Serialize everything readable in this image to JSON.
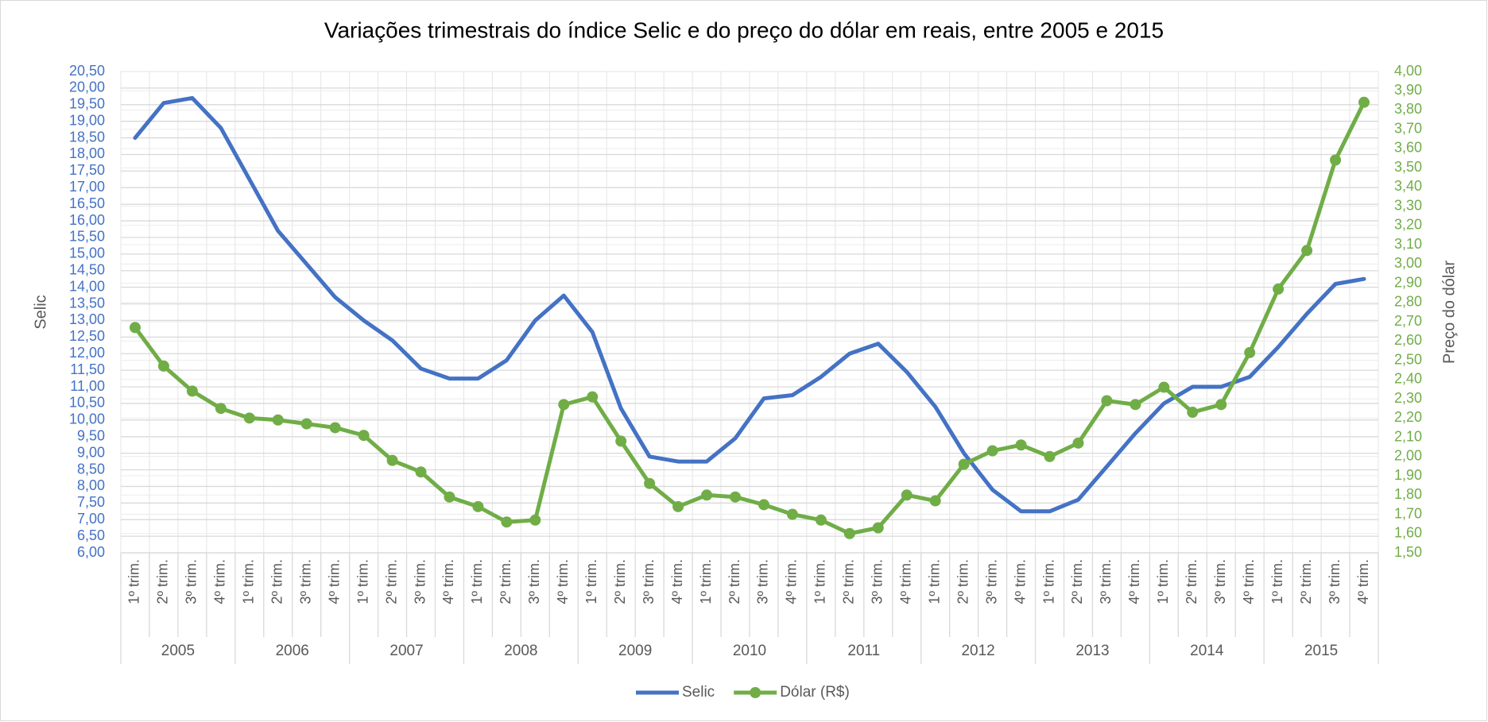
{
  "chart_data": {
    "type": "line",
    "title": "Variações trimestrais do índice Selic e do preço do dólar em reais, entre 2005 e 2015",
    "y_label": "Selic",
    "y2_label": "Preço do dólar",
    "categories": [
      "1º trim.",
      "2º trim.",
      "3º trim.",
      "4º trim.",
      "1º trim.",
      "2º trim.",
      "3º trim.",
      "4º trim.",
      "1º trim.",
      "2º trim.",
      "3º trim.",
      "4º trim.",
      "1º trim.",
      "2º trim.",
      "3º trim.",
      "4º trim.",
      "1º trim.",
      "2º trim.",
      "3º trim.",
      "4º trim.",
      "1º trim.",
      "2º trim.",
      "3º trim.",
      "4º trim.",
      "1º trim.",
      "2º trim.",
      "3º trim.",
      "4º trim.",
      "1º trim.",
      "2º trim.",
      "3º trim.",
      "4º trim.",
      "1º trim.",
      "2º trim.",
      "3º trim.",
      "4º trim.",
      "1º trim.",
      "2º trim.",
      "3º trim.",
      "4º trim.",
      "1º trim.",
      "2º trim.",
      "3º trim.",
      "4º trim."
    ],
    "years": [
      "2005",
      "2006",
      "2007",
      "2008",
      "2009",
      "2010",
      "2011",
      "2012",
      "2013",
      "2014",
      "2015"
    ],
    "series": [
      {
        "name": "Selic",
        "color": "#4472c4",
        "axis": "y",
        "marker": false,
        "values": [
          18.5,
          19.55,
          19.7,
          18.8,
          17.25,
          15.7,
          14.7,
          13.7,
          13.0,
          12.4,
          11.55,
          11.25,
          11.25,
          11.8,
          13.0,
          13.75,
          12.65,
          10.35,
          8.9,
          8.75,
          8.75,
          9.45,
          10.65,
          10.75,
          11.3,
          12.0,
          12.3,
          11.45,
          10.4,
          9.0,
          7.9,
          7.25,
          7.25,
          7.6,
          8.6,
          9.6,
          10.5,
          11.0,
          11.0,
          11.3,
          12.2,
          13.2,
          14.1,
          14.25
        ]
      },
      {
        "name": "Dólar (R$)",
        "color": "#70ad47",
        "axis": "y2",
        "marker": true,
        "values": [
          2.67,
          2.47,
          2.34,
          2.25,
          2.2,
          2.19,
          2.17,
          2.15,
          2.11,
          1.98,
          1.92,
          1.79,
          1.74,
          1.66,
          1.67,
          2.27,
          2.31,
          2.08,
          1.86,
          1.74,
          1.8,
          1.79,
          1.75,
          1.7,
          1.67,
          1.6,
          1.63,
          1.8,
          1.77,
          1.96,
          2.03,
          2.06,
          2.0,
          2.07,
          2.29,
          2.27,
          2.36,
          2.23,
          2.27,
          2.54,
          2.87,
          3.07,
          3.54,
          3.84
        ]
      }
    ],
    "ylim": [
      6,
      20.5
    ],
    "yticks": [
      {
        "value": 6,
        "label": "6,00"
      },
      {
        "value": 6.5,
        "label": "6,50"
      },
      {
        "value": 7,
        "label": "7,00"
      },
      {
        "value": 7.5,
        "label": "7,50"
      },
      {
        "value": 8,
        "label": "8,00"
      },
      {
        "value": 8.5,
        "label": "8,50"
      },
      {
        "value": 9,
        "label": "9,00"
      },
      {
        "value": 9.5,
        "label": "9,50"
      },
      {
        "value": 10,
        "label": "10,00"
      },
      {
        "value": 10.5,
        "label": "10,50"
      },
      {
        "value": 11,
        "label": "11,00"
      },
      {
        "value": 11.5,
        "label": "11,50"
      },
      {
        "value": 12,
        "label": "12,00"
      },
      {
        "value": 12.5,
        "label": "12,50"
      },
      {
        "value": 13,
        "label": "13,00"
      },
      {
        "value": 13.5,
        "label": "13,50"
      },
      {
        "value": 14,
        "label": "14,00"
      },
      {
        "value": 14.5,
        "label": "14,50"
      },
      {
        "value": 15,
        "label": "15,00"
      },
      {
        "value": 15.5,
        "label": "15,50"
      },
      {
        "value": 16,
        "label": "16,00"
      },
      {
        "value": 16.5,
        "label": "16,50"
      },
      {
        "value": 17,
        "label": "17,00"
      },
      {
        "value": 17.5,
        "label": "17,50"
      },
      {
        "value": 18,
        "label": "18,00"
      },
      {
        "value": 18.5,
        "label": "18,50"
      },
      {
        "value": 19,
        "label": "19,00"
      },
      {
        "value": 19.5,
        "label": "19,50"
      },
      {
        "value": 20,
        "label": "20,00"
      },
      {
        "value": 20.5,
        "label": "20,50"
      }
    ],
    "y2lim": [
      1.5,
      4.0
    ],
    "y2ticks": [
      {
        "value": 1.5,
        "label": "1,50"
      },
      {
        "value": 1.6,
        "label": "1,60"
      },
      {
        "value": 1.7,
        "label": "1,70"
      },
      {
        "value": 1.8,
        "label": "1,80"
      },
      {
        "value": 1.9,
        "label": "1,90"
      },
      {
        "value": 2.0,
        "label": "2,00"
      },
      {
        "value": 2.1,
        "label": "2,10"
      },
      {
        "value": 2.2,
        "label": "2,20"
      },
      {
        "value": 2.3,
        "label": "2,30"
      },
      {
        "value": 2.4,
        "label": "2,40"
      },
      {
        "value": 2.5,
        "label": "2,50"
      },
      {
        "value": 2.6,
        "label": "2,60"
      },
      {
        "value": 2.7,
        "label": "2,70"
      },
      {
        "value": 2.8,
        "label": "2,80"
      },
      {
        "value": 2.9,
        "label": "2,90"
      },
      {
        "value": 3.0,
        "label": "3,00"
      },
      {
        "value": 3.1,
        "label": "3,10"
      },
      {
        "value": 3.2,
        "label": "3,20"
      },
      {
        "value": 3.3,
        "label": "3,30"
      },
      {
        "value": 3.4,
        "label": "3,40"
      },
      {
        "value": 3.5,
        "label": "3,50"
      },
      {
        "value": 3.6,
        "label": "3,60"
      },
      {
        "value": 3.7,
        "label": "3,70"
      },
      {
        "value": 3.8,
        "label": "3,80"
      },
      {
        "value": 3.9,
        "label": "3,90"
      },
      {
        "value": 4.0,
        "label": "4,00"
      }
    ],
    "grid": true,
    "legend": "bottom"
  }
}
